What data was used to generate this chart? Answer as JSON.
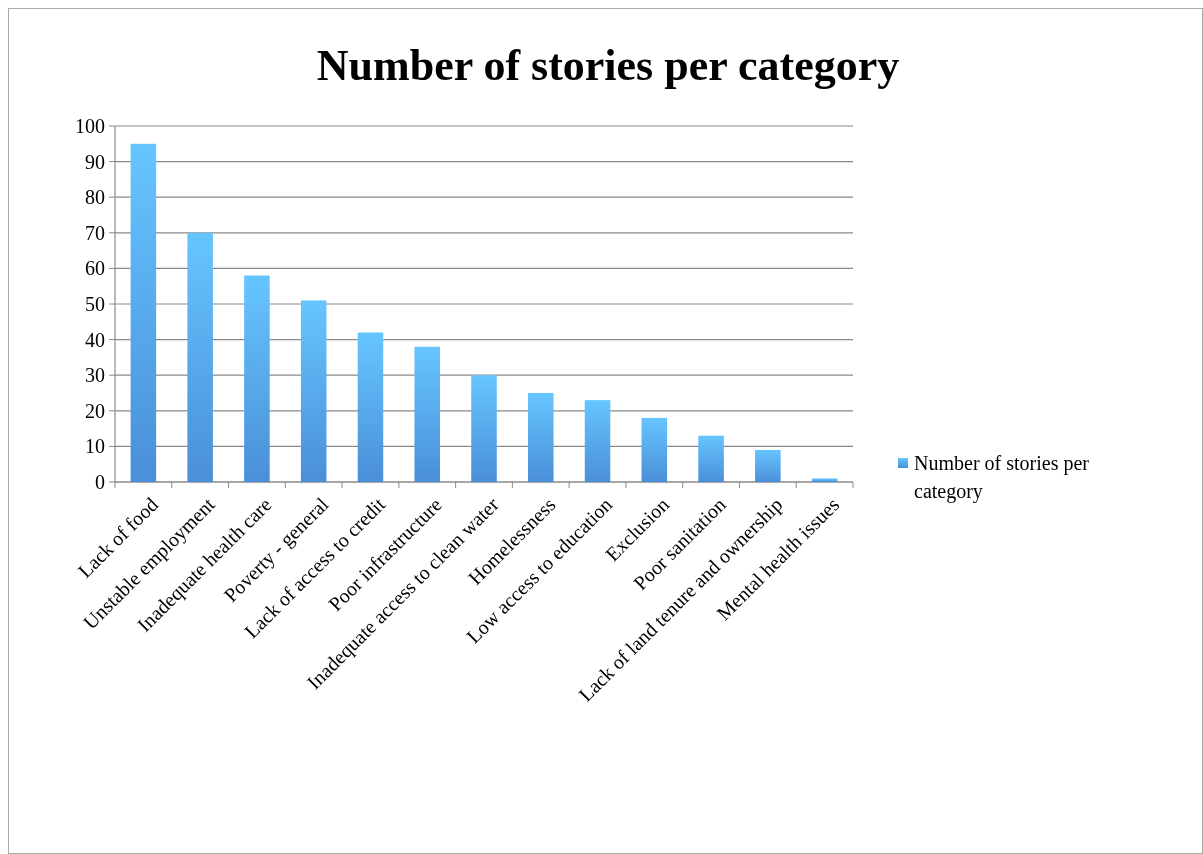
{
  "chart_data": {
    "type": "bar",
    "title": "Number of stories per category",
    "categories": [
      "Lack of food",
      "Unstable employment",
      "Inadequate health care",
      "Poverty - general",
      "Lack of access to credit",
      "Poor infrastructure",
      "Inadequate access to clean water",
      "Homelessness",
      "Low access to education",
      "Exclusion",
      "Poor sanitation",
      "Lack of land tenure and ownership",
      "Mental health issues"
    ],
    "series": [
      {
        "name": "Number of stories per category",
        "color": "#4a8fd8",
        "values": [
          95,
          70,
          58,
          51,
          42,
          38,
          30,
          25,
          23,
          18,
          13,
          9,
          1
        ]
      }
    ],
    "ylim": [
      0,
      100
    ],
    "yticks": [
      0,
      10,
      20,
      30,
      40,
      50,
      60,
      70,
      80,
      90,
      100
    ],
    "grid": "y",
    "legend": "right"
  }
}
